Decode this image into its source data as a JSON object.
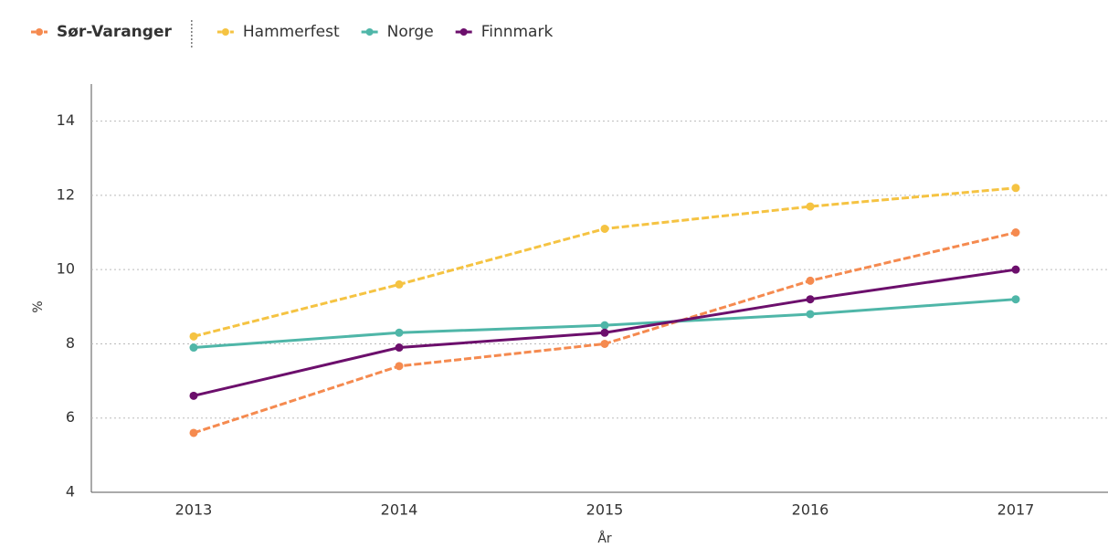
{
  "chart_data": {
    "type": "line",
    "x": [
      "2013",
      "2014",
      "2015",
      "2016",
      "2017"
    ],
    "xlabel": "År",
    "ylabel": "%",
    "ylim": [
      4,
      15
    ],
    "yticks": [
      4,
      6,
      8,
      10,
      12,
      14
    ],
    "grid": true,
    "legend": "top-left",
    "series": [
      {
        "name": "Sør-Varanger",
        "color": "#f58a4f",
        "dashed": true,
        "values": [
          5.6,
          7.4,
          8.0,
          9.7,
          11.0
        ]
      },
      {
        "name": "Hammerfest",
        "color": "#f5c342",
        "dashed": true,
        "values": [
          8.2,
          9.6,
          11.1,
          11.7,
          12.2
        ]
      },
      {
        "name": "Norge",
        "color": "#4fb6a8",
        "dashed": false,
        "values": [
          7.9,
          8.3,
          8.5,
          8.8,
          9.2
        ]
      },
      {
        "name": "Finnmark",
        "color": "#6c0f6c",
        "dashed": false,
        "values": [
          6.6,
          7.9,
          8.3,
          9.2,
          10.0
        ]
      }
    ]
  }
}
